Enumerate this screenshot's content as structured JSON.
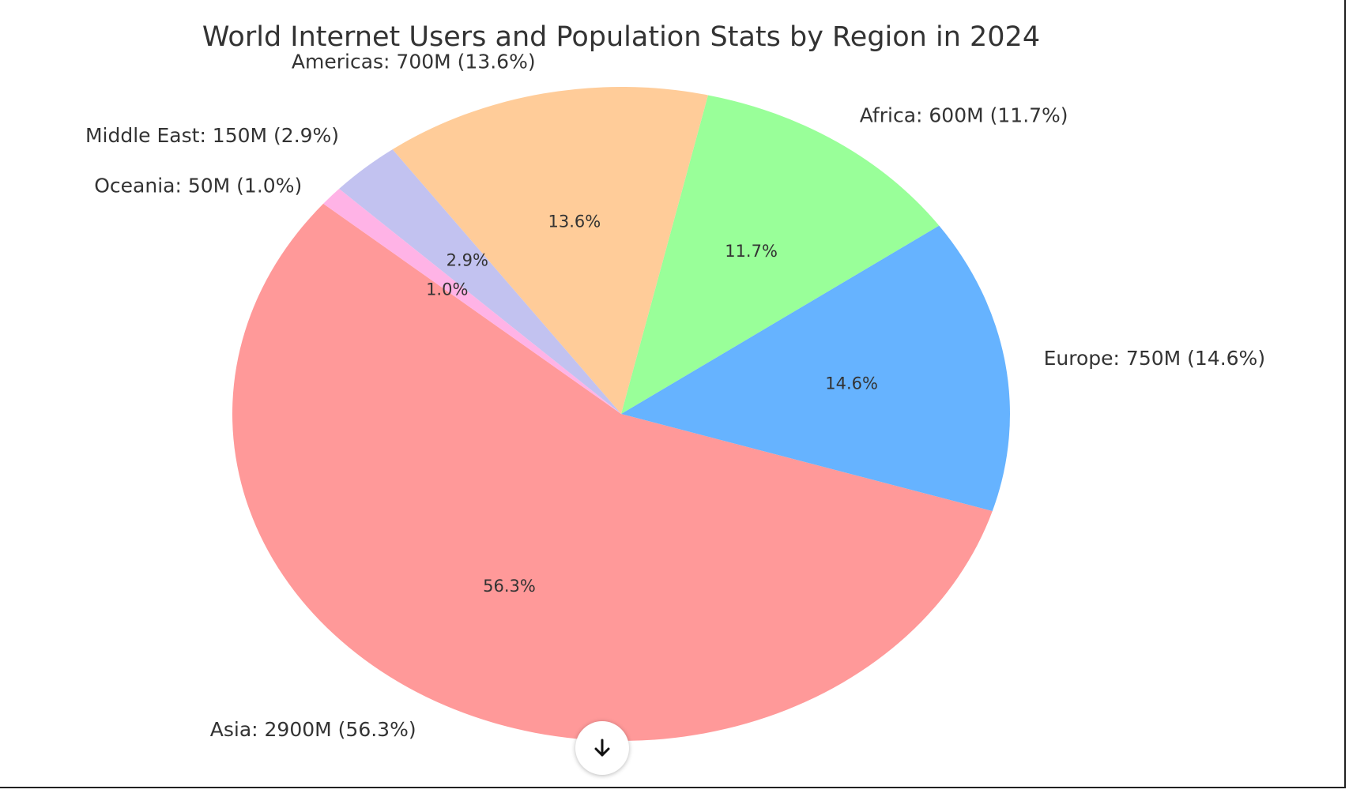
{
  "chart_data": {
    "type": "pie",
    "title": "World Internet Users and Population Stats by Region in 2024",
    "categories": [
      "Asia",
      "Europe",
      "Africa",
      "Americas",
      "Middle East",
      "Oceania"
    ],
    "values": [
      2900,
      750,
      600,
      700,
      150,
      50
    ],
    "percent_labels": [
      "56.3%",
      "14.6%",
      "11.7%",
      "13.6%",
      "2.9%",
      "1.0%"
    ],
    "slice_labels": [
      "Asia: 2900M (56.3%)",
      "Europe: 750M (14.6%)",
      "Africa: 600M (11.7%)",
      "Americas: 700M (13.6%)",
      "Middle East: 150M (2.9%)",
      "Oceania: 50M (1.0%)"
    ],
    "colors": [
      "#ff9999",
      "#66b3ff",
      "#99ff99",
      "#ffcc99",
      "#c2c2f0",
      "#ffb3e6"
    ],
    "start_angle_deg": 140,
    "direction": "counterclockwise"
  },
  "ui": {
    "scroll_button_icon": "arrow-down-icon"
  }
}
